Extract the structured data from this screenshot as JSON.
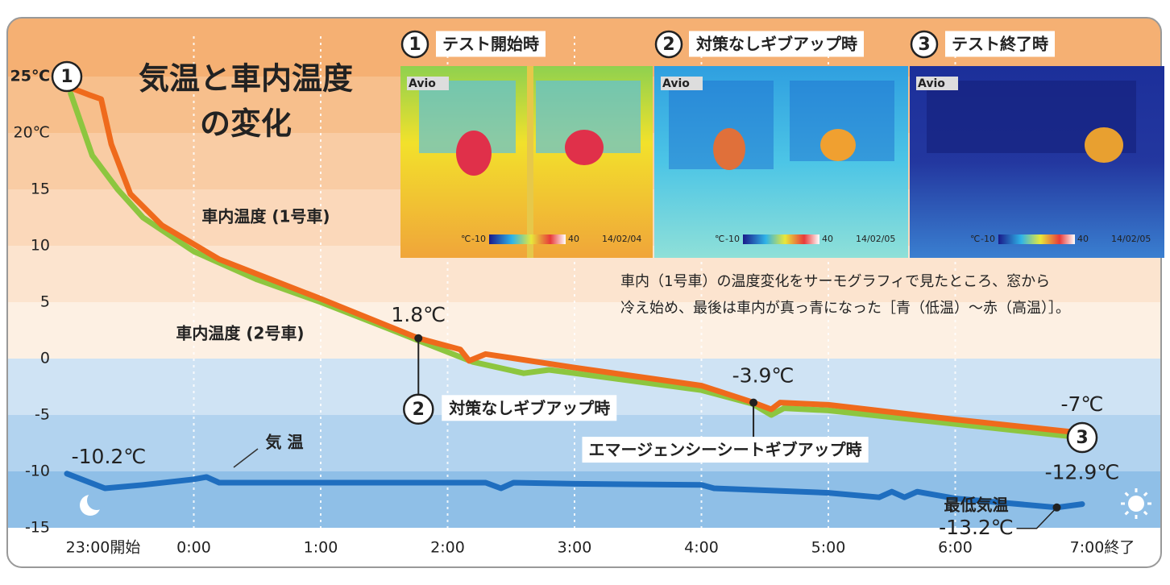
{
  "chart_data": {
    "type": "line",
    "title_lines": [
      "気温と車内温度",
      "の変化"
    ],
    "xlim": [
      0,
      8
    ],
    "xticks": [
      {
        "value": 0,
        "label": "23:00開始"
      },
      {
        "value": 1,
        "label": "0:00"
      },
      {
        "value": 2,
        "label": "1:00"
      },
      {
        "value": 3,
        "label": "2:00"
      },
      {
        "value": 4,
        "label": "3:00"
      },
      {
        "value": 5,
        "label": "4:00"
      },
      {
        "value": 6,
        "label": "5:00"
      },
      {
        "value": 7,
        "label": "6:00"
      },
      {
        "value": 8,
        "label": "7:00終了"
      }
    ],
    "ylim": [
      -15,
      30
    ],
    "yticks": [
      -15,
      -10,
      -5,
      0,
      5,
      10,
      15,
      {
        "value": 20,
        "label": "20℃"
      },
      {
        "value": 25,
        "label": "25℃"
      }
    ],
    "grid": true,
    "series": [
      {
        "name": "車内温度 (1号車)",
        "color": "#ef6a1c",
        "x": [
          0.03,
          0.17,
          0.27,
          0.35,
          0.5,
          0.75,
          1.2,
          2.0,
          2.77,
          3.1,
          3.17,
          3.3,
          4.0,
          5.0,
          5.41,
          5.55,
          5.62,
          6.0,
          7.0,
          8.0
        ],
        "values": [
          24.0,
          23.4,
          23.0,
          19.0,
          14.6,
          11.8,
          8.8,
          5.3,
          1.8,
          0.8,
          -0.2,
          0.4,
          -0.8,
          -2.4,
          -3.9,
          -4.5,
          -3.9,
          -4.1,
          -5.4,
          -6.6
        ]
      },
      {
        "name": "車内温度 (2号車)",
        "color": "#8dc63f",
        "x": [
          0.03,
          0.2,
          0.4,
          0.6,
          1.0,
          1.5,
          2.0,
          2.5,
          2.77,
          3.2,
          3.6,
          3.8,
          4.0,
          5.0,
          5.4,
          5.55,
          5.65,
          6.0,
          7.0,
          8.0
        ],
        "values": [
          23.5,
          18.0,
          15.0,
          12.5,
          9.5,
          7.0,
          5.0,
          2.8,
          1.6,
          -0.3,
          -1.3,
          -1.0,
          -1.3,
          -2.8,
          -4.0,
          -5.0,
          -4.4,
          -4.6,
          -5.8,
          -7.0
        ]
      },
      {
        "name": "気 温",
        "color": "#1f6ebf",
        "x": [
          0,
          0.3,
          0.6,
          1.0,
          1.1,
          1.2,
          2.0,
          3.0,
          3.3,
          3.42,
          3.52,
          4.0,
          5.0,
          5.1,
          6.0,
          6.4,
          6.5,
          6.6,
          6.7,
          7.0,
          7.8,
          8.0
        ],
        "values": [
          -10.2,
          -11.5,
          -11.2,
          -10.7,
          -10.5,
          -11.0,
          -11.0,
          -11.0,
          -11.0,
          -11.5,
          -11.0,
          -11.1,
          -11.2,
          -11.5,
          -11.9,
          -12.3,
          -11.8,
          -12.3,
          -11.8,
          -12.4,
          -13.2,
          -12.9
        ]
      }
    ],
    "start_marker": "1",
    "annotations": [
      {
        "text": "1.8℃",
        "x": 2.77,
        "y": 1.8,
        "marker": "2",
        "event": "対策なしギブアップ時"
      },
      {
        "text": "-3.9℃",
        "x": 5.41,
        "y": -3.9,
        "event": "エマージェンシーシートギブアップ時"
      },
      {
        "text": "-7℃",
        "x": 8,
        "y": -7,
        "marker": "3"
      },
      {
        "text": "-10.2℃",
        "x": 0,
        "y": -10.2
      },
      {
        "text": "-13.2℃",
        "x": 7.8,
        "y": -13.2,
        "note": "最低気温"
      },
      {
        "text": "-12.9℃",
        "x": 8,
        "y": -12.9
      }
    ]
  },
  "photos": {
    "brand": "Avio",
    "scale_unit": "℃",
    "scale_min": -10,
    "scale_max": 40,
    "items": [
      {
        "number": "1",
        "caption": "テスト開始時",
        "date": "14/02/04"
      },
      {
        "number": "2",
        "caption": "対策なしギブアップ時",
        "date": "14/02/05"
      },
      {
        "number": "3",
        "caption": "テスト終了時",
        "date": "14/02/05"
      }
    ],
    "description": [
      "車内（1号車）の温度変化をサーモグラフィで見たところ、窓から",
      "冷え始め、最後は車内が真っ青になった［青（低温）〜赤（高温）］。"
    ]
  }
}
